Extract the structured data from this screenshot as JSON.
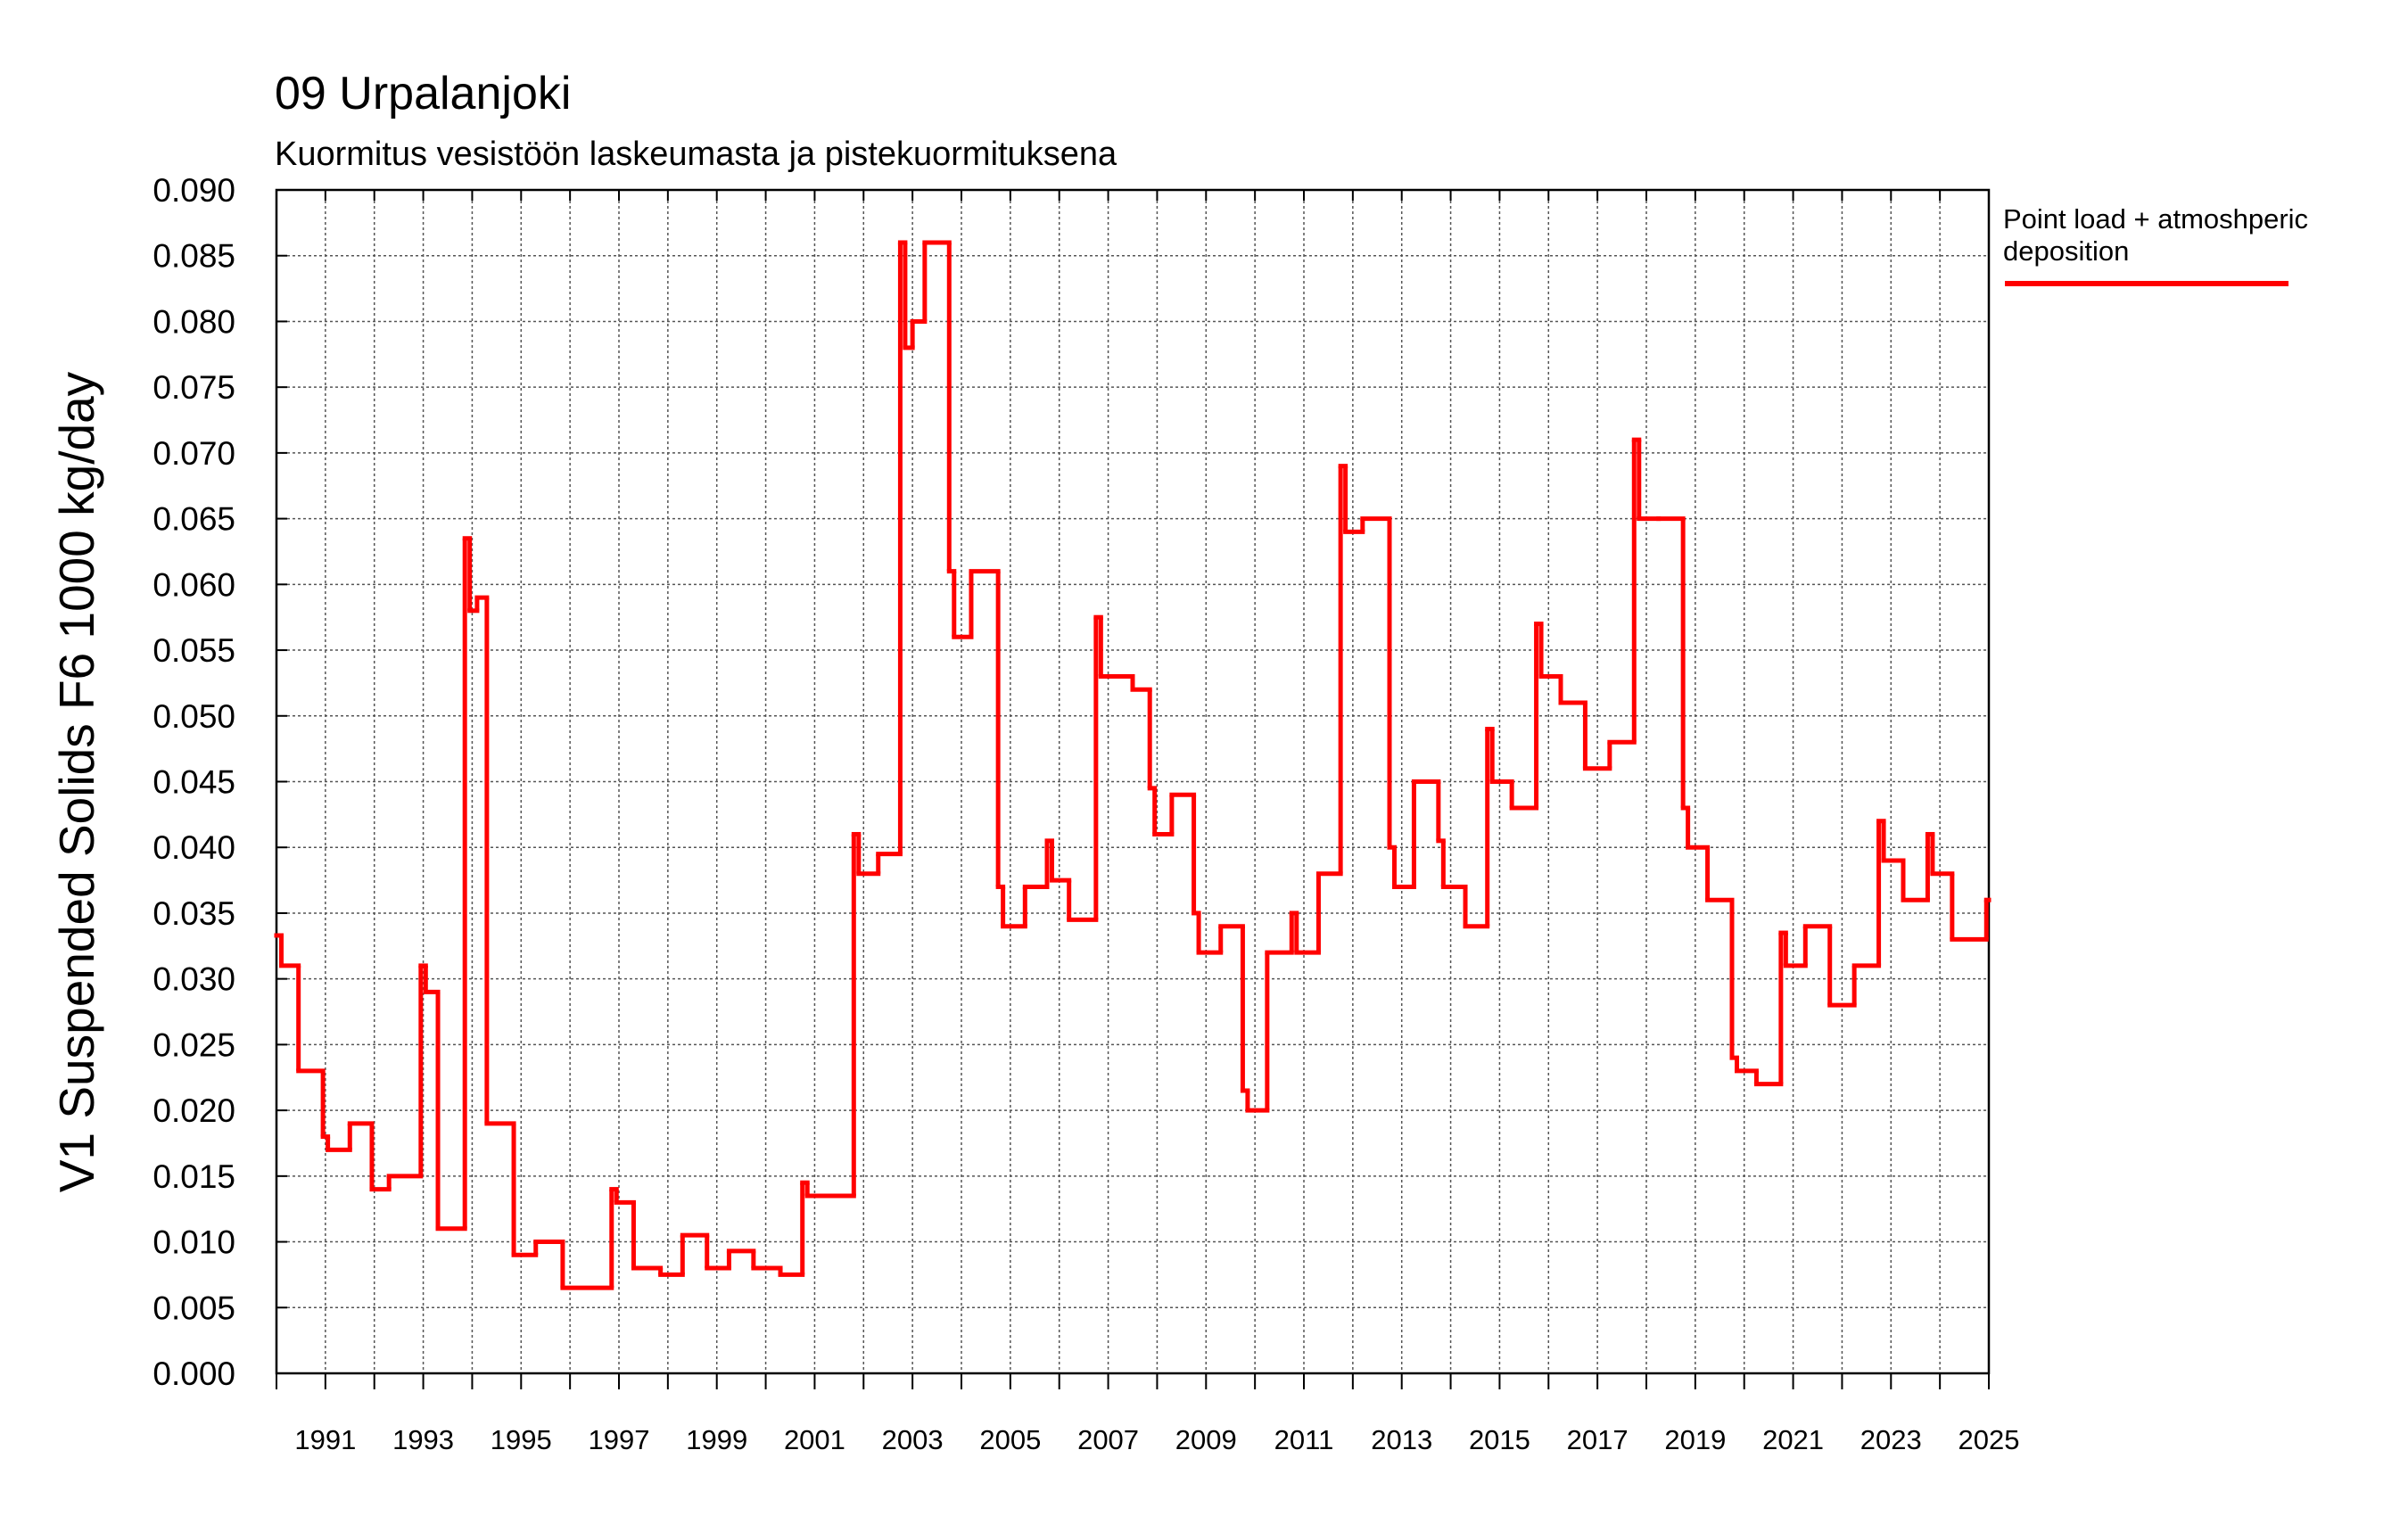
{
  "chart_data": {
    "type": "step-line",
    "title": "09 Urpalanjoki",
    "subtitle": "Kuormitus vesistöön laskeumasta ja pistekuormituksena",
    "y_label": "V1 Suspended Solids F6 1000 kg/day",
    "xlim": [
      1990,
      2025
    ],
    "xticks": [
      1991,
      1993,
      1995,
      1997,
      1999,
      2001,
      2003,
      2005,
      2007,
      2009,
      2011,
      2013,
      2015,
      2017,
      2019,
      2021,
      2023,
      2025
    ],
    "xminorticks": [
      1990,
      1992,
      1994,
      1996,
      1998,
      2000,
      2002,
      2004,
      2006,
      2008,
      2010,
      2012,
      2014,
      2016,
      2018,
      2020,
      2022,
      2024
    ],
    "ylim": [
      0,
      0.09
    ],
    "yticks": [
      {
        "value": 0,
        "label": "0.000"
      },
      {
        "value": 0.005,
        "label": "0.005"
      },
      {
        "value": 0.01,
        "label": "0.010"
      },
      {
        "value": 0.015,
        "label": "0.015"
      },
      {
        "value": 0.02,
        "label": "0.020"
      },
      {
        "value": 0.025,
        "label": "0.025"
      },
      {
        "value": 0.03,
        "label": "0.030"
      },
      {
        "value": 0.035,
        "label": "0.035"
      },
      {
        "value": 0.04,
        "label": "0.040"
      },
      {
        "value": 0.045,
        "label": "0.045"
      },
      {
        "value": 0.05,
        "label": "0.050"
      },
      {
        "value": 0.055,
        "label": "0.055"
      },
      {
        "value": 0.06,
        "label": "0.060"
      },
      {
        "value": 0.065,
        "label": "0.065"
      },
      {
        "value": 0.07,
        "label": "0.070"
      },
      {
        "value": 0.075,
        "label": "0.075"
      },
      {
        "value": 0.08,
        "label": "0.080"
      },
      {
        "value": 0.085,
        "label": "0.085"
      },
      {
        "value": 0.09,
        "label": "0.090"
      }
    ],
    "grid": true,
    "legend": "right",
    "series": [
      {
        "name": "Point load + atmoshperic deposition",
        "color": "#ff0000",
        "x": [
          1990,
          1990.1,
          1990.45,
          1990.95,
          1991.05,
          1991.5,
          1991.95,
          1992.3,
          1992.95,
          1993.05,
          1993.3,
          1993.85,
          1993.95,
          1994.1,
          1994.3,
          1994.85,
          1995.3,
          1995.85,
          1996.85,
          1996.95,
          1997.3,
          1997.85,
          1998.3,
          1998.8,
          1999.25,
          1999.75,
          2000.3,
          2000.75,
          2000.85,
          2001.8,
          2001.9,
          2002.3,
          2002.75,
          2002.85,
          2003.0,
          2003.25,
          2003.75,
          2003.85,
          2004.2,
          2004.75,
          2004.85,
          2005.3,
          2005.75,
          2005.85,
          2006.2,
          2006.75,
          2006.85,
          2007.1,
          2007.5,
          2007.85,
          2007.95,
          2008.3,
          2008.75,
          2008.85,
          2009.3,
          2009.75,
          2009.85,
          2010.25,
          2010.75,
          2010.85,
          2011.3,
          2011.75,
          2011.85,
          2012.2,
          2012.75,
          2012.85,
          2013.25,
          2013.75,
          2013.85,
          2014.3,
          2014.75,
          2014.85,
          2015.25,
          2015.75,
          2015.85,
          2016.25,
          2016.75,
          2017.25,
          2017.75,
          2017.85,
          2018.25,
          2018.75,
          2018.85,
          2019.25,
          2019.75,
          2019.85,
          2020.25,
          2020.75,
          2020.85,
          2021.25,
          2021.75,
          2022.25,
          2022.75,
          2022.85,
          2023.25,
          2023.75,
          2023.85,
          2024.25,
          2024.95
        ],
        "values": [
          0.0333,
          0.031,
          0.023,
          0.018,
          0.017,
          0.019,
          0.014,
          0.015,
          0.031,
          0.029,
          0.011,
          0.0635,
          0.058,
          0.059,
          0.019,
          0.009,
          0.01,
          0.0065,
          0.014,
          0.013,
          0.008,
          0.0075,
          0.0105,
          0.008,
          0.0093,
          0.008,
          0.0075,
          0.0145,
          0.0135,
          0.041,
          0.038,
          0.0395,
          0.086,
          0.078,
          0.08,
          0.086,
          0.061,
          0.056,
          0.061,
          0.037,
          0.034,
          0.037,
          0.0405,
          0.0375,
          0.0345,
          0.0575,
          0.053,
          0.053,
          0.052,
          0.0445,
          0.041,
          0.044,
          0.035,
          0.032,
          0.034,
          0.0215,
          0.02,
          0.032,
          0.035,
          0.032,
          0.038,
          0.069,
          0.064,
          0.065,
          0.04,
          0.037,
          0.045,
          0.0405,
          0.037,
          0.034,
          0.049,
          0.045,
          0.043,
          0.057,
          0.053,
          0.051,
          0.046,
          0.048,
          0.071,
          0.065,
          0.065,
          0.043,
          0.04,
          0.036,
          0.024,
          0.023,
          0.022,
          0.0335,
          0.031,
          0.034,
          0.028,
          0.031,
          0.042,
          0.039,
          0.036,
          0.041,
          0.038,
          0.033,
          0.036
        ]
      }
    ]
  }
}
